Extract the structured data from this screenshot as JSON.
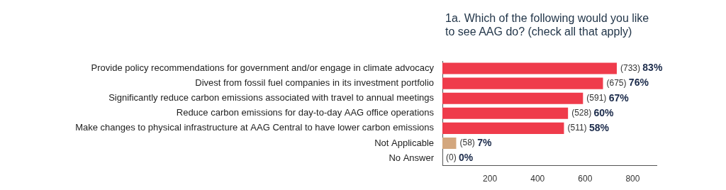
{
  "chart_data": {
    "type": "bar",
    "orientation": "horizontal",
    "title": "1a. Which of the following would you like to see AAG do? (check all that apply)",
    "categories": [
      "Provide policy recommendations for government and/or engage in climate advocacy",
      "Divest from fossil fuel companies in its investment portfolio",
      "Significantly reduce carbon emissions associated with travel to annual meetings",
      "Reduce carbon emissions for day-to-day AAG office operations",
      "Make changes to physical infrastructure at AAG Central to have lower carbon emissions",
      "Not Applicable",
      "No Answer"
    ],
    "values": [
      733,
      675,
      591,
      528,
      511,
      58,
      0
    ],
    "value_labels": [
      "(733) 83%",
      "(675) 76%",
      "(591) 67%",
      "(528) 60%",
      "(511) 58%",
      "(58) 7%",
      "(0) 0%"
    ],
    "colors": [
      "#ef3b4b",
      "#ef3b4b",
      "#ef3b4b",
      "#ef3b4b",
      "#ef3b4b",
      "#d3a77e",
      "#d3a77e"
    ],
    "xlim": [
      0,
      900
    ],
    "xticks": [
      200,
      400,
      600,
      800
    ],
    "grid": false,
    "data_labels": true
  }
}
